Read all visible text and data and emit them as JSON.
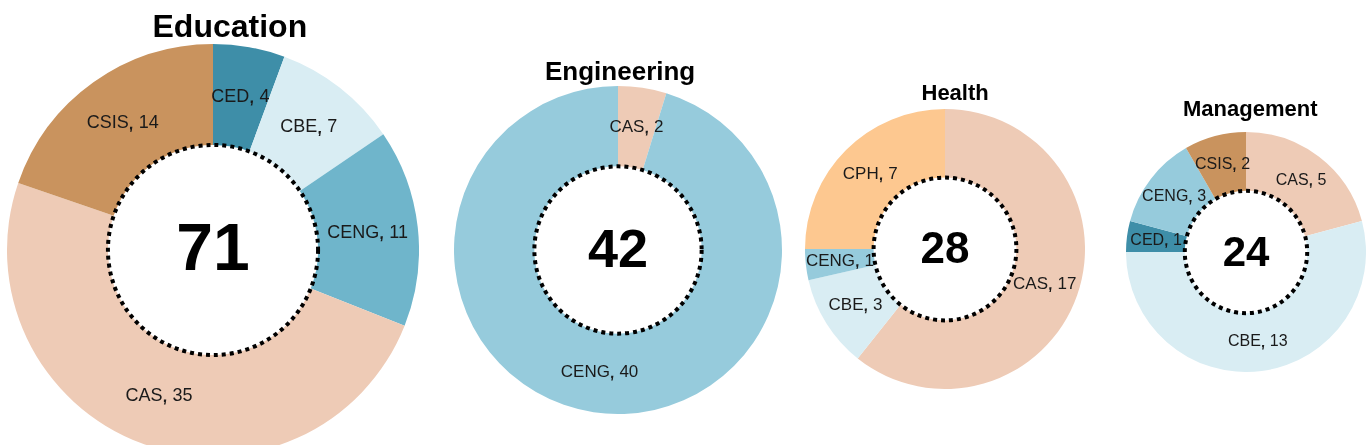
{
  "chart_data": [
    {
      "type": "donut",
      "title": "Education",
      "categories": [
        "CED",
        "CBE",
        "CENG",
        "CAS",
        "CSIS"
      ],
      "values": [
        4,
        7,
        11,
        35,
        14
      ],
      "colors": [
        "#3e8ea8",
        "#d9edf3",
        "#6fb5cb",
        "#eecbb6",
        "#c9935e"
      ],
      "data_labels": true,
      "annotations": [
        "71"
      ]
    },
    {
      "type": "donut",
      "title": "Engineering",
      "categories": [
        "CAS",
        "CENG"
      ],
      "values": [
        2,
        40
      ],
      "colors": [
        "#eecbb6",
        "#96cbdc"
      ],
      "data_labels": true,
      "annotations": [
        "42"
      ]
    },
    {
      "type": "donut",
      "title": "Health",
      "categories": [
        "CAS",
        "CBE",
        "CENG",
        "CPH"
      ],
      "values": [
        17,
        3,
        1,
        7
      ],
      "colors": [
        "#eecbb6",
        "#d9edf3",
        "#96cbdc",
        "#fdc890"
      ],
      "data_labels": true,
      "annotations": [
        "28"
      ]
    },
    {
      "type": "donut",
      "title": "Management",
      "categories": [
        "CAS",
        "CBE",
        "CED",
        "CENG",
        "CSIS"
      ],
      "values": [
        5,
        13,
        1,
        3,
        2
      ],
      "colors": [
        "#eecbb6",
        "#d9edf3",
        "#3e8ea8",
        "#96cbdc",
        "#c9935e"
      ],
      "data_labels": true,
      "annotations": [
        "24"
      ]
    }
  ]
}
